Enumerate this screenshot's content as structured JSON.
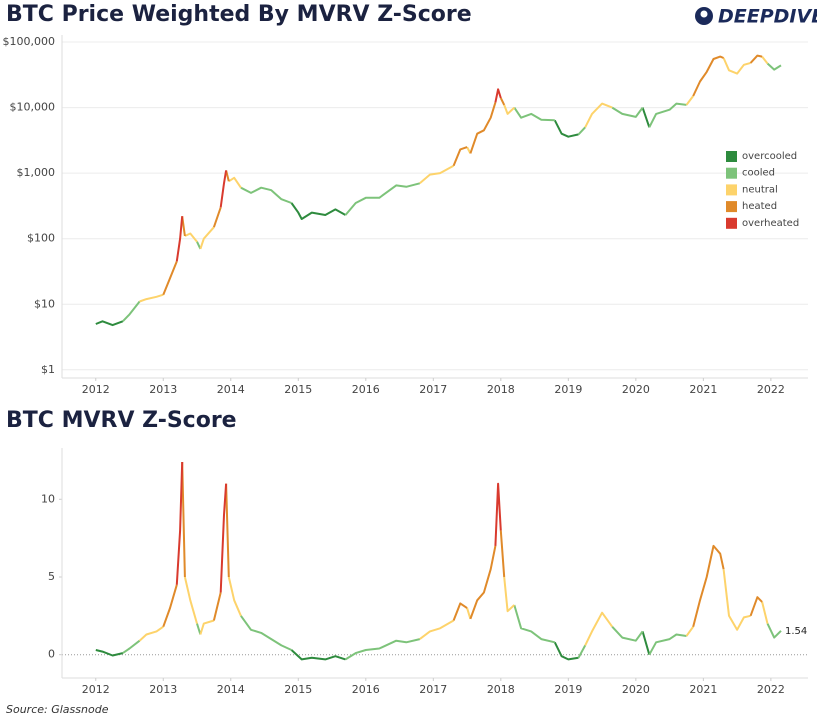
{
  "brand": "DEEPDIVE",
  "source": "Source: Glassnode",
  "chart_data": [
    {
      "type": "line",
      "title": "BTC Price Weighted By MVRV Z-Score",
      "log_scale": true,
      "grid": true,
      "legend": "right",
      "xlim": [
        2011.5,
        2022.55
      ],
      "xticks": [
        2012,
        2013,
        2014,
        2015,
        2016,
        2017,
        2018,
        2019,
        2020,
        2021,
        2022
      ],
      "ylim": [
        0.75,
        128000
      ],
      "yticks": [
        {
          "value": 1,
          "label": "$1"
        },
        {
          "value": 10,
          "label": "$10"
        },
        {
          "value": 100,
          "label": "$100"
        },
        {
          "value": 1000,
          "label": "$1,000"
        },
        {
          "value": 10000,
          "label": "$10,000"
        },
        {
          "value": 100000,
          "label": "$100,000"
        }
      ],
      "series": [
        {
          "name": "overcooled",
          "color": "#2e8b3e",
          "x": [
            2012.0,
            2012.1,
            2012.25,
            2012.4,
            null,
            2014.9,
            2015.0,
            2015.05,
            2015.2,
            2015.4,
            2015.55,
            2015.7,
            null,
            2018.8,
            2018.9,
            2019.0,
            2019.15,
            null,
            2020.1,
            2020.2
          ],
          "values": [
            5,
            5.5,
            4.8,
            5.5,
            null,
            350,
            250,
            200,
            250,
            230,
            280,
            230,
            null,
            6400,
            4000,
            3600,
            3900,
            null,
            10000,
            5000
          ]
        },
        {
          "name": "cooled",
          "color": "#7dc37a",
          "x": [
            2012.4,
            2012.5,
            2012.65,
            null,
            2013.5,
            2013.55,
            null,
            2014.15,
            2014.3,
            2014.45,
            2014.6,
            2014.75,
            2014.9,
            null,
            2015.7,
            2015.85,
            2016.0,
            2016.2,
            2016.45,
            2016.6,
            2016.8,
            null,
            2018.2,
            2018.3,
            2018.45,
            2018.6,
            2018.8,
            null,
            2019.15,
            2019.25,
            null,
            2019.65,
            2019.8,
            2020.0,
            2020.1,
            null,
            2020.2,
            2020.3,
            2020.5,
            2020.6,
            2020.75,
            null,
            2021.95,
            2022.05,
            2022.15
          ],
          "values": [
            5.5,
            7,
            11,
            null,
            90,
            70,
            null,
            600,
            500,
            600,
            550,
            400,
            350,
            null,
            230,
            350,
            420,
            420,
            650,
            620,
            700,
            null,
            10000,
            7000,
            8000,
            6500,
            6400,
            null,
            3900,
            5000,
            null,
            10000,
            8000,
            7200,
            10000,
            null,
            5000,
            8000,
            9300,
            11500,
            11000,
            null,
            47000,
            38000,
            44000
          ]
        },
        {
          "name": "neutral",
          "color": "#fdd36b",
          "x": [
            2012.65,
            2012.75,
            2012.9,
            2013.0,
            null,
            2013.32,
            2013.4,
            2013.5,
            null,
            2013.55,
            2013.6,
            2013.75,
            null,
            2013.97,
            2014.05,
            2014.15,
            null,
            2016.8,
            2016.95,
            2017.1,
            2017.3,
            null,
            2017.5,
            2017.55,
            null,
            2018.05,
            2018.1,
            2018.2,
            null,
            2019.25,
            2019.35,
            2019.5,
            2019.65,
            null,
            2020.75,
            2020.85,
            null,
            2021.3,
            2021.38,
            2021.5,
            2021.6,
            2021.7,
            null,
            2021.87,
            2021.95
          ],
          "values": [
            11,
            12,
            13,
            14,
            null,
            110,
            120,
            90,
            null,
            70,
            100,
            150,
            null,
            750,
            850,
            600,
            null,
            700,
            950,
            1000,
            1300,
            null,
            2500,
            2000,
            null,
            11000,
            8000,
            10000,
            null,
            5000,
            8000,
            11500,
            10000,
            null,
            11000,
            15000,
            null,
            57000,
            37000,
            33000,
            45000,
            48000,
            null,
            60000,
            47000
          ]
        },
        {
          "name": "heated",
          "color": "#e08a2a",
          "x": [
            2013.0,
            2013.1,
            2013.2,
            null,
            2013.28,
            2013.32,
            null,
            2013.75,
            2013.85,
            null,
            2013.93,
            2013.97,
            null,
            2017.3,
            2017.4,
            2017.5,
            null,
            2017.55,
            2017.65,
            2017.75,
            2017.85,
            2017.92,
            null,
            2018.0,
            2018.05,
            null,
            2020.85,
            2020.95,
            2021.05,
            2021.15,
            2021.25,
            2021.3,
            null,
            2021.7,
            2021.8,
            2021.87
          ],
          "values": [
            14,
            25,
            45,
            null,
            220,
            110,
            null,
            150,
            300,
            null,
            1100,
            750,
            null,
            1300,
            2300,
            2500,
            null,
            2000,
            4000,
            4500,
            7000,
            12000,
            null,
            14000,
            11000,
            null,
            15000,
            25000,
            35000,
            55000,
            60000,
            57000,
            null,
            48000,
            62000,
            60000
          ]
        },
        {
          "name": "overheated",
          "color": "#d93a2e",
          "x": [
            2013.2,
            2013.25,
            2013.28,
            null,
            2013.85,
            2013.9,
            2013.93,
            null,
            2017.92,
            2017.96,
            2018.0
          ],
          "values": [
            45,
            100,
            220,
            null,
            300,
            700,
            1100,
            null,
            12000,
            19000,
            14000
          ]
        }
      ]
    },
    {
      "type": "line",
      "title": "BTC MVRV Z-Score",
      "log_scale": false,
      "grid": false,
      "zero_line": true,
      "xlim": [
        2011.5,
        2022.55
      ],
      "xticks": [
        2012,
        2013,
        2014,
        2015,
        2016,
        2017,
        2018,
        2019,
        2020,
        2021,
        2022
      ],
      "ylim": [
        -1.5,
        13.3
      ],
      "yticks": [
        0,
        5,
        10
      ],
      "series": [
        {
          "color": "#2e8b3e",
          "x": [
            2012.0,
            2012.1,
            2012.25,
            2012.4,
            null,
            2014.9,
            2015.0,
            2015.05,
            2015.2,
            2015.4,
            2015.55,
            2015.7,
            null,
            2018.8,
            2018.9,
            2019.0,
            2019.15,
            null,
            2020.1,
            2020.2
          ],
          "values": [
            0.3,
            0.2,
            -0.05,
            0.1,
            null,
            0.3,
            -0.1,
            -0.3,
            -0.2,
            -0.3,
            -0.1,
            -0.3,
            null,
            0.8,
            -0.1,
            -0.3,
            -0.2,
            null,
            1.5,
            0.0
          ]
        },
        {
          "color": "#7dc37a",
          "x": [
            2012.4,
            2012.5,
            2012.65,
            null,
            2013.5,
            2013.55,
            null,
            2014.15,
            2014.3,
            2014.45,
            2014.6,
            2014.75,
            2014.9,
            null,
            2015.7,
            2015.85,
            2016.0,
            2016.2,
            2016.45,
            2016.6,
            2016.8,
            null,
            2018.2,
            2018.3,
            2018.45,
            2018.6,
            2018.8,
            null,
            2019.15,
            2019.25,
            null,
            2019.65,
            2019.8,
            2020.0,
            2020.1,
            null,
            2020.2,
            2020.3,
            2020.5,
            2020.6,
            2020.75,
            null,
            2021.95,
            2022.05,
            2022.15
          ],
          "values": [
            0.1,
            0.4,
            0.9,
            null,
            2,
            1.3,
            null,
            2.5,
            1.6,
            1.4,
            1.0,
            0.6,
            0.3,
            null,
            -0.3,
            0.1,
            0.3,
            0.4,
            0.9,
            0.8,
            1.0,
            null,
            3.2,
            1.7,
            1.5,
            1,
            0.8,
            null,
            -0.2,
            0.6,
            null,
            1.8,
            1.1,
            0.9,
            1.5,
            null,
            0.0,
            0.8,
            1.0,
            1.3,
            1.2,
            null,
            2,
            1.1,
            1.54
          ]
        },
        {
          "color": "#fdd36b",
          "x": [
            2012.65,
            2012.75,
            2012.9,
            2013.0,
            null,
            2013.32,
            2013.4,
            2013.5,
            null,
            2013.55,
            2013.6,
            2013.75,
            null,
            2013.97,
            2014.05,
            2014.15,
            null,
            2016.8,
            2016.95,
            2017.1,
            2017.3,
            null,
            2017.5,
            2017.55,
            null,
            2018.05,
            2018.1,
            2018.2,
            null,
            2019.25,
            2019.35,
            2019.5,
            2019.65,
            null,
            2020.75,
            2020.85,
            null,
            2021.3,
            2021.38,
            2021.5,
            2021.6,
            2021.7,
            null,
            2021.87,
            2021.95
          ],
          "values": [
            0.9,
            1.3,
            1.5,
            1.8,
            null,
            5,
            3.5,
            2,
            null,
            1.3,
            2,
            2.2,
            null,
            5,
            3.5,
            2.5,
            null,
            1.0,
            1.5,
            1.7,
            2.2,
            null,
            3,
            2.3,
            null,
            5,
            2.8,
            3.2,
            null,
            0.6,
            1.5,
            2.7,
            1.8,
            null,
            1.2,
            1.8,
            null,
            5.5,
            2.5,
            1.6,
            2.4,
            2.5,
            null,
            3.4,
            2
          ]
        },
        {
          "color": "#e08a2a",
          "x": [
            2013.0,
            2013.1,
            2013.2,
            null,
            2013.28,
            2013.32,
            null,
            2013.75,
            2013.85,
            null,
            2013.93,
            2013.97,
            null,
            2017.3,
            2017.4,
            2017.5,
            null,
            2017.55,
            2017.65,
            2017.75,
            2017.85,
            2017.92,
            null,
            2018.0,
            2018.05,
            null,
            2020.85,
            2020.95,
            2021.05,
            2021.15,
            2021.25,
            2021.3,
            null,
            2021.7,
            2021.8,
            2021.87
          ],
          "values": [
            1.8,
            3,
            4.5,
            null,
            12.4,
            5,
            null,
            2.2,
            4,
            null,
            11,
            5,
            null,
            2.2,
            3.3,
            3,
            null,
            2.3,
            3.5,
            4,
            5.5,
            7,
            null,
            8,
            5,
            null,
            1.8,
            3.5,
            5,
            7,
            6.5,
            5.5,
            null,
            2.5,
            3.7,
            3.4
          ]
        },
        {
          "color": "#d93a2e",
          "x": [
            2013.2,
            2013.25,
            2013.28,
            null,
            2013.85,
            2013.9,
            2013.93,
            null,
            2017.92,
            2017.96,
            2018.0
          ],
          "values": [
            4.5,
            8,
            12.4,
            null,
            4,
            9,
            11,
            null,
            7,
            11,
            8
          ]
        }
      ]
    }
  ]
}
